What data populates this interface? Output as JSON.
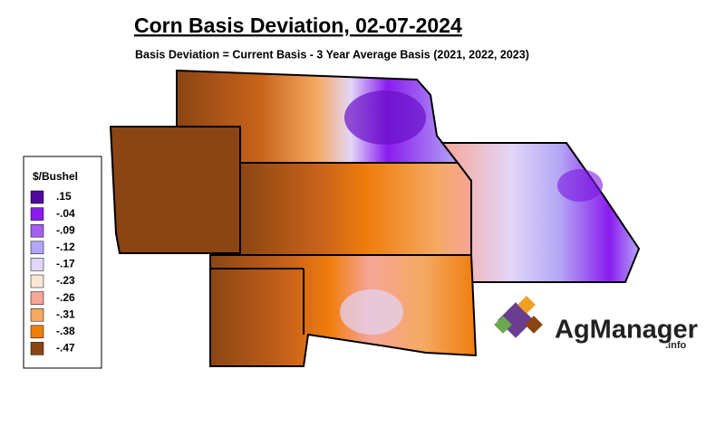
{
  "header": {
    "title": "Corn Basis Deviation, 02-07-2024",
    "subtitle": "Basis Deviation = Current Basis - 3 Year Average Basis (2021, 2022, 2023)"
  },
  "legend": {
    "title": "$/Bushel",
    "items": [
      {
        "label": ".15",
        "color": "#4e0a9c"
      },
      {
        "label": "-.04",
        "color": "#8a1cf0"
      },
      {
        "label": "-.09",
        "color": "#a35ef2"
      },
      {
        "label": "-.12",
        "color": "#b3a6f4"
      },
      {
        "label": "-.17",
        "color": "#e2d6f8"
      },
      {
        "label": "-.23",
        "color": "#fbe6d6"
      },
      {
        "label": "-.26",
        "color": "#f6a597"
      },
      {
        "label": "-.31",
        "color": "#f5a962"
      },
      {
        "label": "-.38",
        "color": "#ef7d0c"
      },
      {
        "label": "-.47",
        "color": "#8b4513"
      }
    ]
  },
  "logo": {
    "name": "AgManager",
    "suffix": ".info"
  }
}
